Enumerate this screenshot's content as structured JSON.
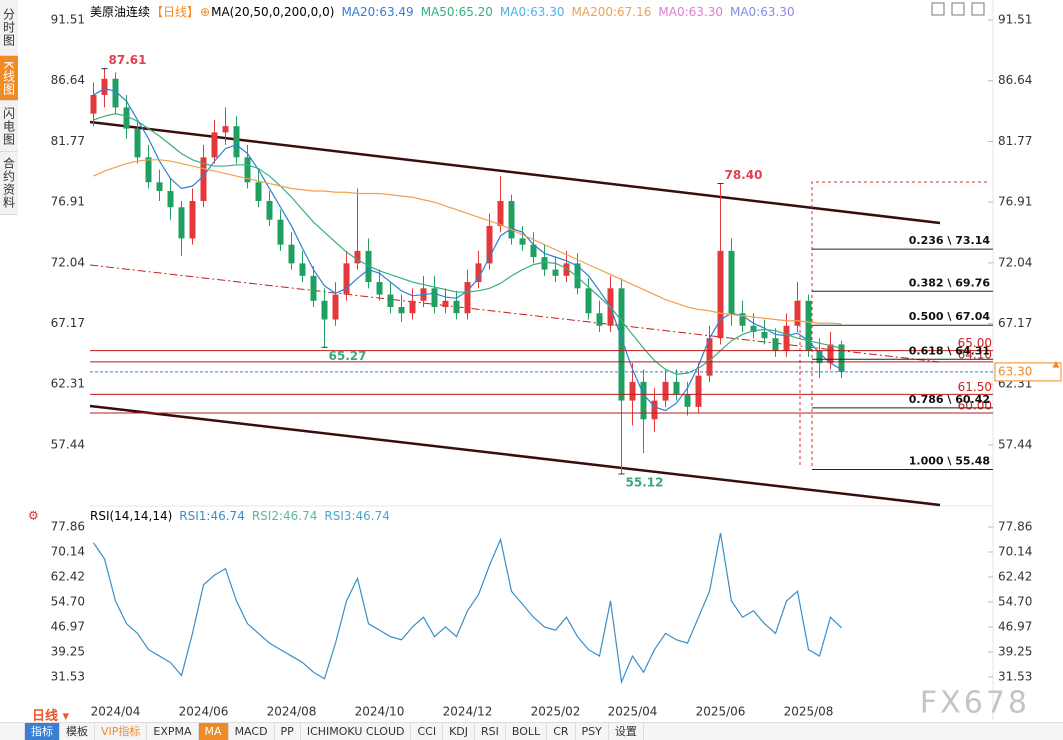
{
  "sidebar_tabs": [
    "分时图",
    "K线图",
    "闪电图",
    "合约资料"
  ],
  "chart_data": [
    {
      "type": "candlestick",
      "title": "美原油连续",
      "period": "【日线】",
      "indicator": "MA(20,50,0,200,0,0)",
      "ylim": [
        52.63,
        92.31
      ],
      "yticks": [
        91.51,
        86.64,
        81.77,
        76.91,
        72.04,
        67.17,
        62.31,
        57.44
      ],
      "up_color": "#e5383b",
      "down_color": "#1fa060",
      "categories": [
        null,
        null,
        "2024/04",
        null,
        null,
        null,
        null,
        null,
        null,
        null,
        "2024/06",
        null,
        null,
        null,
        null,
        null,
        null,
        null,
        "2024/08",
        null,
        null,
        null,
        null,
        null,
        null,
        null,
        "2024/10",
        null,
        null,
        null,
        null,
        null,
        null,
        null,
        "2024/12",
        null,
        null,
        null,
        null,
        null,
        null,
        null,
        "2025/02",
        null,
        null,
        null,
        null,
        null,
        null,
        "2025/04",
        null,
        null,
        null,
        null,
        null,
        null,
        null,
        "2025/06",
        null,
        null,
        null,
        null,
        null,
        null,
        null,
        "2025/08",
        null,
        null,
        null
      ],
      "open": [
        84.0,
        85.5,
        86.8,
        84.5,
        82.8,
        80.5,
        78.5,
        77.8,
        76.5,
        74.0,
        77.0,
        80.5,
        82.5,
        83.0,
        80.5,
        78.5,
        77.0,
        75.5,
        73.5,
        72.0,
        71.0,
        69.0,
        67.5,
        69.5,
        72.0,
        73.0,
        70.5,
        69.5,
        68.5,
        68.0,
        69.0,
        70.0,
        68.5,
        69.0,
        68.0,
        70.5,
        72.0,
        75.0,
        77.0,
        74.0,
        73.5,
        72.5,
        71.5,
        71.0,
        72.0,
        70.0,
        68.0,
        67.0,
        70.0,
        61.0,
        62.5,
        59.5,
        61.0,
        62.5,
        61.5,
        60.5,
        63.0,
        66.0,
        73.0,
        68.0,
        67.0,
        66.5,
        66.0,
        65.0,
        67.0,
        69.0,
        65.0,
        64.0,
        65.5
      ],
      "high": [
        86.5,
        87.61,
        87.3,
        85.5,
        83.5,
        81.5,
        79.5,
        78.8,
        77.0,
        78.0,
        81.5,
        83.5,
        84.5,
        83.8,
        81.5,
        79.5,
        77.8,
        76.3,
        74.5,
        73.0,
        71.8,
        70.0,
        70.5,
        73.0,
        78.0,
        74.0,
        71.5,
        70.5,
        69.5,
        70.0,
        71.0,
        71.0,
        70.0,
        69.8,
        71.5,
        73.0,
        76.0,
        79.0,
        77.5,
        75.0,
        74.5,
        73.5,
        72.5,
        73.0,
        72.8,
        70.8,
        69.0,
        71.0,
        70.8,
        64.0,
        63.5,
        62.0,
        63.5,
        63.5,
        62.5,
        64.0,
        67.0,
        78.4,
        74.0,
        69.0,
        68.0,
        67.5,
        66.8,
        68.0,
        70.5,
        69.5,
        66.0,
        66.5,
        65.8
      ],
      "low": [
        83.0,
        84.5,
        84.0,
        82.0,
        80.0,
        78.0,
        77.0,
        75.5,
        72.6,
        73.5,
        76.5,
        80.0,
        81.5,
        80.0,
        78.0,
        76.5,
        75.0,
        73.0,
        71.5,
        70.5,
        68.5,
        65.27,
        67.0,
        69.0,
        71.5,
        70.0,
        69.0,
        68.0,
        67.3,
        67.5,
        68.5,
        68.0,
        68.0,
        67.5,
        67.5,
        70.0,
        71.5,
        74.5,
        73.5,
        73.0,
        72.0,
        71.0,
        70.5,
        70.5,
        69.5,
        67.5,
        66.5,
        66.5,
        55.12,
        59.0,
        56.8,
        58.5,
        60.5,
        61.0,
        59.8,
        60.0,
        62.5,
        65.5,
        67.0,
        66.5,
        66.0,
        65.5,
        64.5,
        64.5,
        66.5,
        64.5,
        62.8,
        63.5,
        62.8
      ],
      "close": [
        85.5,
        86.8,
        84.5,
        82.8,
        80.5,
        78.5,
        77.8,
        76.5,
        74.0,
        77.0,
        80.5,
        82.5,
        83.0,
        80.5,
        78.5,
        77.0,
        75.5,
        73.5,
        72.0,
        71.0,
        69.0,
        67.5,
        69.5,
        72.0,
        73.0,
        70.5,
        69.5,
        68.5,
        68.0,
        69.0,
        70.0,
        68.5,
        69.0,
        68.0,
        70.5,
        72.0,
        75.0,
        77.0,
        74.0,
        73.5,
        72.5,
        71.5,
        71.0,
        72.0,
        70.0,
        68.0,
        67.0,
        70.0,
        61.0,
        62.5,
        59.5,
        61.0,
        62.5,
        61.5,
        60.5,
        63.0,
        66.0,
        73.0,
        68.0,
        67.0,
        66.5,
        66.0,
        65.0,
        67.0,
        69.0,
        65.0,
        64.0,
        65.5,
        63.3
      ],
      "series": [
        {
          "name": "MA20:63.49",
          "color": "#2f7fd6",
          "values": [
            85.5,
            86.0,
            85.8,
            85.0,
            83.5,
            82.0,
            80.2,
            78.8,
            78.0,
            78.2,
            79.0,
            80.2,
            81.2,
            81.5,
            80.8,
            79.5,
            78.0,
            76.5,
            75.0,
            73.2,
            71.5,
            70.2,
            69.6,
            70.0,
            70.8,
            71.5,
            71.2,
            70.5,
            69.8,
            69.4,
            69.5,
            69.6,
            69.3,
            69.2,
            69.8,
            70.8,
            72.5,
            74.2,
            74.8,
            74.5,
            73.5,
            72.8,
            72.5,
            72.2,
            71.8,
            71.0,
            69.8,
            68.5,
            66.0,
            63.5,
            61.5,
            60.5,
            60.2,
            60.8,
            62.0,
            63.8,
            66.0,
            67.5,
            68.0,
            67.8,
            67.2,
            66.8,
            66.3,
            66.2,
            66.4,
            65.8,
            64.8,
            64.0,
            63.49
          ]
        },
        {
          "name": "MA50:65.20",
          "color": "#35b07a",
          "values": [
            83.5,
            83.8,
            84.0,
            83.8,
            83.4,
            82.8,
            82.2,
            81.5,
            80.8,
            80.3,
            80.0,
            79.8,
            79.8,
            79.9,
            79.9,
            79.6,
            79.0,
            78.2,
            77.3,
            76.3,
            75.3,
            74.5,
            73.7,
            72.9,
            72.3,
            71.8,
            71.4,
            71.1,
            70.8,
            70.5,
            70.3,
            70.1,
            69.9,
            69.7,
            69.7,
            69.8,
            70.0,
            70.4,
            71.0,
            71.5,
            71.9,
            72.1,
            72.0,
            71.6,
            70.9,
            70.1,
            69.3,
            68.5,
            67.4,
            66.3,
            65.2,
            64.2,
            63.5,
            63.1,
            63.2,
            63.6,
            64.2,
            65.0,
            65.8,
            66.3,
            66.6,
            66.7,
            66.6,
            66.3,
            66.0,
            65.8,
            65.6,
            65.4,
            65.2
          ]
        },
        {
          "name": "MA0:63.30",
          "color": "#4fb0e8"
        },
        {
          "name": "MA200:67.16",
          "color": "#f0a050",
          "values": [
            79.0,
            79.4,
            79.7,
            80.0,
            80.2,
            80.3,
            80.3,
            80.2,
            80.0,
            79.8,
            79.6,
            79.4,
            79.2,
            79.0,
            78.8,
            78.6,
            78.4,
            78.2,
            78.0,
            77.9,
            77.8,
            77.8,
            77.7,
            77.7,
            77.6,
            77.6,
            77.6,
            77.5,
            77.4,
            77.3,
            77.1,
            76.9,
            76.6,
            76.3,
            76.0,
            75.7,
            75.4,
            75.1,
            74.7,
            74.3,
            73.9,
            73.5,
            73.1,
            72.7,
            72.3,
            71.9,
            71.5,
            71.1,
            70.7,
            70.3,
            69.9,
            69.5,
            69.1,
            68.8,
            68.5,
            68.3,
            68.2,
            68.0,
            67.9,
            67.8,
            67.7,
            67.6,
            67.5,
            67.4,
            67.4,
            67.3,
            67.2,
            67.2,
            67.16
          ]
        },
        {
          "name": "MA0:63.30",
          "color": "#e07ad0"
        },
        {
          "name": "MA0:63.30",
          "color": "#8a8ae8"
        }
      ],
      "annotations": [
        {
          "candle": 1,
          "side": "high",
          "value": 87.61
        },
        {
          "candle": 21,
          "side": "low",
          "value": 65.27
        },
        {
          "candle": 57,
          "side": "high",
          "value": 78.4,
          "label": "78.40"
        },
        {
          "candle": 48,
          "side": "low",
          "value": 55.12
        }
      ],
      "fib_levels": [
        {
          "value": 73.14,
          "label": "0.236 \\ 73.14"
        },
        {
          "value": 69.76,
          "label": "0.382 \\ 69.76"
        },
        {
          "value": 67.04,
          "label": "0.500 \\ 67.04"
        },
        {
          "value": 64.31,
          "label": "0.618 \\ 64.31"
        },
        {
          "value": 60.42,
          "label": "0.786 \\ 60.42"
        },
        {
          "value": 55.48,
          "label": "1.000 \\ 55.48"
        }
      ],
      "price_levels": [
        {
          "value": 65,
          "label": "65.00"
        },
        {
          "value": 64.1,
          "label": "64.10"
        },
        {
          "value": 61.5,
          "label": "61.50"
        },
        {
          "value": 60,
          "label": "60.00"
        }
      ],
      "last_price": {
        "value": 63.3,
        "label": "63.30"
      }
    },
    {
      "type": "line",
      "title": "RSI(14,14,14)",
      "ylim": [
        24.43,
        83.11
      ],
      "yticks": [
        77.86,
        {
          "value": 70.14,
          "label": "70.14"
        },
        62.42,
        {
          "value": 54.7,
          "label": "54.70"
        },
        46.97,
        39.25,
        31.53
      ],
      "series": [
        {
          "name": "RSI1:46.74",
          "color": "#3a8fc8",
          "values": [
            73,
            68,
            55,
            48,
            45,
            40,
            38,
            36,
            32,
            45,
            60,
            63,
            65,
            55,
            48,
            45,
            42,
            40,
            38,
            36,
            33,
            31,
            42,
            55,
            62,
            48,
            46,
            44,
            43,
            47,
            50,
            44,
            47,
            44,
            52,
            57,
            66,
            74,
            58,
            54,
            50,
            47,
            46,
            50,
            44,
            40,
            38,
            55,
            30,
            38,
            33,
            40,
            45,
            43,
            42,
            50,
            58,
            76,
            55,
            50,
            52,
            48,
            45,
            55,
            58,
            40,
            38,
            50,
            46.74
          ]
        },
        {
          "name": "RSI2:46.74",
          "color": "#5fb6a0"
        },
        {
          "name": "RSI3:46.74",
          "color": "#4aa8d0"
        }
      ]
    }
  ],
  "toolbar": {
    "period": "日线",
    "items": [
      "指标",
      "模板",
      "VIP指标",
      "EXPMA",
      "MA",
      "MACD",
      "PP",
      "ICHIMOKU CLOUD",
      "CCI",
      "KDJ",
      "RSI",
      "BOLL",
      "CR",
      "PSY",
      "设置"
    ]
  },
  "watermark": "FX678"
}
